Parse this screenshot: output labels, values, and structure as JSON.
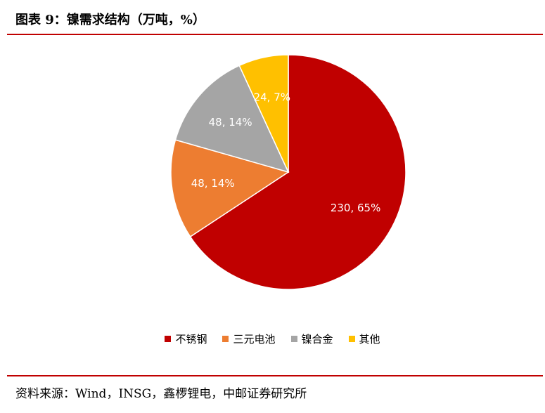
{
  "title": "图表 9：镍需求结构（万吨，%）",
  "source": "资料来源：Wind，INSG，鑫椤锂电，中邮证券研究所",
  "chart_data": {
    "type": "pie",
    "categories": [
      "不锈钢",
      "三元电池",
      "镍合金",
      "其他"
    ],
    "values": [
      230,
      48,
      48,
      24
    ],
    "percents": [
      65,
      14,
      14,
      7
    ],
    "data_labels": [
      "230, 65%",
      "48, 14%",
      "48, 14%",
      "24, 7%"
    ],
    "colors": [
      "#c00000",
      "#ed7d31",
      "#a5a5a5",
      "#ffc000"
    ],
    "start_angle": "12 o'clock",
    "direction": "clockwise",
    "legend_position": "bottom"
  }
}
